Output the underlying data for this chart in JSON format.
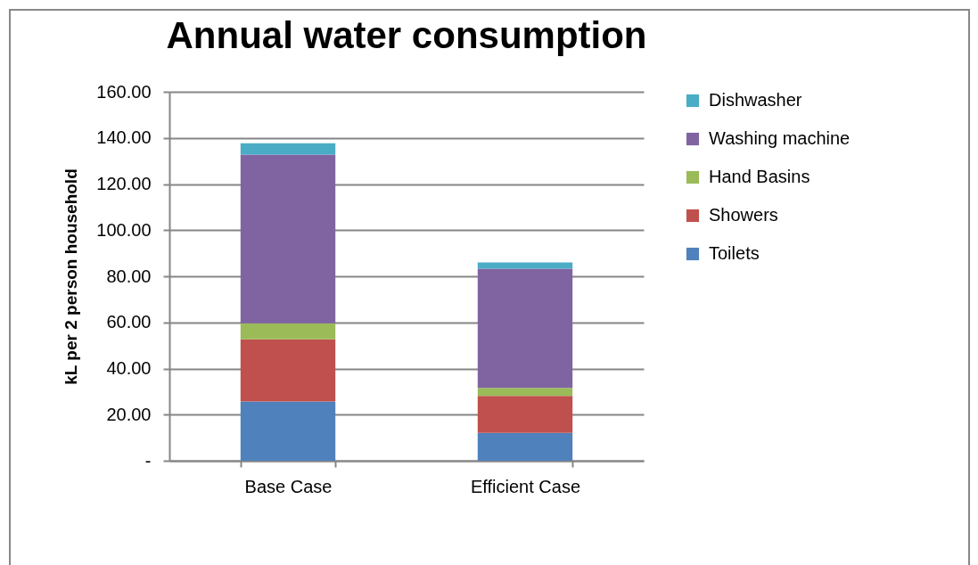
{
  "chart_data": {
    "type": "bar",
    "title": "Annual water consumption",
    "ylabel": "kL per 2 person household",
    "categories": [
      "Base Case",
      "Efficient Case"
    ],
    "stacked": true,
    "series": [
      {
        "name": "Toilets",
        "color": "#4f81bd",
        "values": [
          25.7,
          12.1
        ]
      },
      {
        "name": "Showers",
        "color": "#c0504d",
        "values": [
          27.0,
          16.0
        ]
      },
      {
        "name": "Hand Basins",
        "color": "#9bbb59",
        "values": [
          6.9,
          3.5
        ]
      },
      {
        "name": "Washing machine",
        "color": "#8064a2",
        "values": [
          73.2,
          51.7
        ]
      },
      {
        "name": "Dishwasher",
        "color": "#4bacc6",
        "values": [
          4.9,
          2.7
        ]
      }
    ],
    "ylim": [
      0,
      160
    ],
    "yticks": [
      {
        "value": 0,
        "label": "-"
      },
      {
        "value": 20,
        "label": "20.00"
      },
      {
        "value": 40,
        "label": "40.00"
      },
      {
        "value": 60,
        "label": "60.00"
      },
      {
        "value": 80,
        "label": "80.00"
      },
      {
        "value": 100,
        "label": "100.00"
      },
      {
        "value": 120,
        "label": "120.00"
      },
      {
        "value": 140,
        "label": "140.00"
      },
      {
        "value": 160,
        "label": "160.00"
      }
    ],
    "grid": "y",
    "legend": "right"
  }
}
